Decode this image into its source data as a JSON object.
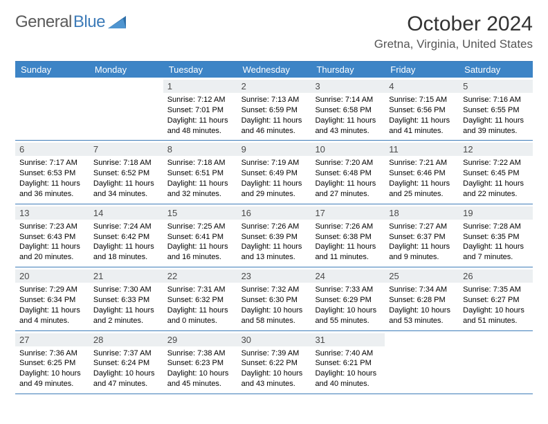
{
  "brand": {
    "word1": "General",
    "word2": "Blue"
  },
  "colors": {
    "header_bg": "#3d84c6",
    "header_text": "#ffffff",
    "daynum_bg": "#eceff1",
    "border": "#3d7bb8",
    "logo_gray": "#5a5a5a",
    "logo_blue": "#3d7bb8",
    "body_text": "#000000"
  },
  "title": "October 2024",
  "location": "Gretna, Virginia, United States",
  "day_headers": [
    "Sunday",
    "Monday",
    "Tuesday",
    "Wednesday",
    "Thursday",
    "Friday",
    "Saturday"
  ],
  "weeks": [
    [
      {
        "day": "",
        "sunrise": "",
        "sunset": "",
        "daylight": ""
      },
      {
        "day": "",
        "sunrise": "",
        "sunset": "",
        "daylight": ""
      },
      {
        "day": "1",
        "sunrise": "Sunrise: 7:12 AM",
        "sunset": "Sunset: 7:01 PM",
        "daylight": "Daylight: 11 hours and 48 minutes."
      },
      {
        "day": "2",
        "sunrise": "Sunrise: 7:13 AM",
        "sunset": "Sunset: 6:59 PM",
        "daylight": "Daylight: 11 hours and 46 minutes."
      },
      {
        "day": "3",
        "sunrise": "Sunrise: 7:14 AM",
        "sunset": "Sunset: 6:58 PM",
        "daylight": "Daylight: 11 hours and 43 minutes."
      },
      {
        "day": "4",
        "sunrise": "Sunrise: 7:15 AM",
        "sunset": "Sunset: 6:56 PM",
        "daylight": "Daylight: 11 hours and 41 minutes."
      },
      {
        "day": "5",
        "sunrise": "Sunrise: 7:16 AM",
        "sunset": "Sunset: 6:55 PM",
        "daylight": "Daylight: 11 hours and 39 minutes."
      }
    ],
    [
      {
        "day": "6",
        "sunrise": "Sunrise: 7:17 AM",
        "sunset": "Sunset: 6:53 PM",
        "daylight": "Daylight: 11 hours and 36 minutes."
      },
      {
        "day": "7",
        "sunrise": "Sunrise: 7:18 AM",
        "sunset": "Sunset: 6:52 PM",
        "daylight": "Daylight: 11 hours and 34 minutes."
      },
      {
        "day": "8",
        "sunrise": "Sunrise: 7:18 AM",
        "sunset": "Sunset: 6:51 PM",
        "daylight": "Daylight: 11 hours and 32 minutes."
      },
      {
        "day": "9",
        "sunrise": "Sunrise: 7:19 AM",
        "sunset": "Sunset: 6:49 PM",
        "daylight": "Daylight: 11 hours and 29 minutes."
      },
      {
        "day": "10",
        "sunrise": "Sunrise: 7:20 AM",
        "sunset": "Sunset: 6:48 PM",
        "daylight": "Daylight: 11 hours and 27 minutes."
      },
      {
        "day": "11",
        "sunrise": "Sunrise: 7:21 AM",
        "sunset": "Sunset: 6:46 PM",
        "daylight": "Daylight: 11 hours and 25 minutes."
      },
      {
        "day": "12",
        "sunrise": "Sunrise: 7:22 AM",
        "sunset": "Sunset: 6:45 PM",
        "daylight": "Daylight: 11 hours and 22 minutes."
      }
    ],
    [
      {
        "day": "13",
        "sunrise": "Sunrise: 7:23 AM",
        "sunset": "Sunset: 6:43 PM",
        "daylight": "Daylight: 11 hours and 20 minutes."
      },
      {
        "day": "14",
        "sunrise": "Sunrise: 7:24 AM",
        "sunset": "Sunset: 6:42 PM",
        "daylight": "Daylight: 11 hours and 18 minutes."
      },
      {
        "day": "15",
        "sunrise": "Sunrise: 7:25 AM",
        "sunset": "Sunset: 6:41 PM",
        "daylight": "Daylight: 11 hours and 16 minutes."
      },
      {
        "day": "16",
        "sunrise": "Sunrise: 7:26 AM",
        "sunset": "Sunset: 6:39 PM",
        "daylight": "Daylight: 11 hours and 13 minutes."
      },
      {
        "day": "17",
        "sunrise": "Sunrise: 7:26 AM",
        "sunset": "Sunset: 6:38 PM",
        "daylight": "Daylight: 11 hours and 11 minutes."
      },
      {
        "day": "18",
        "sunrise": "Sunrise: 7:27 AM",
        "sunset": "Sunset: 6:37 PM",
        "daylight": "Daylight: 11 hours and 9 minutes."
      },
      {
        "day": "19",
        "sunrise": "Sunrise: 7:28 AM",
        "sunset": "Sunset: 6:35 PM",
        "daylight": "Daylight: 11 hours and 7 minutes."
      }
    ],
    [
      {
        "day": "20",
        "sunrise": "Sunrise: 7:29 AM",
        "sunset": "Sunset: 6:34 PM",
        "daylight": "Daylight: 11 hours and 4 minutes."
      },
      {
        "day": "21",
        "sunrise": "Sunrise: 7:30 AM",
        "sunset": "Sunset: 6:33 PM",
        "daylight": "Daylight: 11 hours and 2 minutes."
      },
      {
        "day": "22",
        "sunrise": "Sunrise: 7:31 AM",
        "sunset": "Sunset: 6:32 PM",
        "daylight": "Daylight: 11 hours and 0 minutes."
      },
      {
        "day": "23",
        "sunrise": "Sunrise: 7:32 AM",
        "sunset": "Sunset: 6:30 PM",
        "daylight": "Daylight: 10 hours and 58 minutes."
      },
      {
        "day": "24",
        "sunrise": "Sunrise: 7:33 AM",
        "sunset": "Sunset: 6:29 PM",
        "daylight": "Daylight: 10 hours and 55 minutes."
      },
      {
        "day": "25",
        "sunrise": "Sunrise: 7:34 AM",
        "sunset": "Sunset: 6:28 PM",
        "daylight": "Daylight: 10 hours and 53 minutes."
      },
      {
        "day": "26",
        "sunrise": "Sunrise: 7:35 AM",
        "sunset": "Sunset: 6:27 PM",
        "daylight": "Daylight: 10 hours and 51 minutes."
      }
    ],
    [
      {
        "day": "27",
        "sunrise": "Sunrise: 7:36 AM",
        "sunset": "Sunset: 6:25 PM",
        "daylight": "Daylight: 10 hours and 49 minutes."
      },
      {
        "day": "28",
        "sunrise": "Sunrise: 7:37 AM",
        "sunset": "Sunset: 6:24 PM",
        "daylight": "Daylight: 10 hours and 47 minutes."
      },
      {
        "day": "29",
        "sunrise": "Sunrise: 7:38 AM",
        "sunset": "Sunset: 6:23 PM",
        "daylight": "Daylight: 10 hours and 45 minutes."
      },
      {
        "day": "30",
        "sunrise": "Sunrise: 7:39 AM",
        "sunset": "Sunset: 6:22 PM",
        "daylight": "Daylight: 10 hours and 43 minutes."
      },
      {
        "day": "31",
        "sunrise": "Sunrise: 7:40 AM",
        "sunset": "Sunset: 6:21 PM",
        "daylight": "Daylight: 10 hours and 40 minutes."
      },
      {
        "day": "",
        "sunrise": "",
        "sunset": "",
        "daylight": ""
      },
      {
        "day": "",
        "sunrise": "",
        "sunset": "",
        "daylight": ""
      }
    ]
  ]
}
